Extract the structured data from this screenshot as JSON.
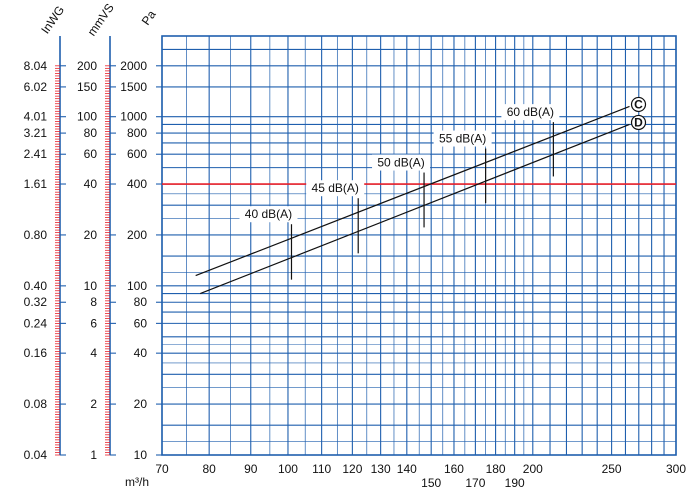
{
  "chart_data": {
    "type": "line",
    "x_scale": "log",
    "y_scale": "log",
    "xlim": [
      70,
      300
    ],
    "ylim": [
      10,
      3000
    ],
    "x_unit": "m³/h",
    "axis_units": {
      "pa": "Pa",
      "mmvs": "mmVS",
      "inwg": "InWG"
    },
    "x_ticks": [
      {
        "value": 70,
        "label": "70",
        "row": "top"
      },
      {
        "value": 80,
        "label": "80",
        "row": "top"
      },
      {
        "value": 90,
        "label": "90",
        "row": "top"
      },
      {
        "value": 100,
        "label": "100",
        "row": "top"
      },
      {
        "value": 110,
        "label": "110",
        "row": "top"
      },
      {
        "value": 120,
        "label": "120",
        "row": "top"
      },
      {
        "value": 130,
        "label": "130",
        "row": "top"
      },
      {
        "value": 140,
        "label": "140",
        "row": "top"
      },
      {
        "value": 150,
        "label": "150",
        "row": "bottom"
      },
      {
        "value": 160,
        "label": "160",
        "row": "top"
      },
      {
        "value": 170,
        "label": "170",
        "row": "bottom"
      },
      {
        "value": 180,
        "label": "180",
        "row": "top"
      },
      {
        "value": 190,
        "label": "190",
        "row": "bottom"
      },
      {
        "value": 200,
        "label": "200",
        "row": "top"
      },
      {
        "value": 250,
        "label": "250",
        "row": "top"
      },
      {
        "value": 300,
        "label": "300",
        "row": "top"
      }
    ],
    "pa_ticks": [
      "10",
      "20",
      "40",
      "60",
      "80",
      "100",
      "200",
      "400",
      "600",
      "800",
      "1000",
      "1500",
      "2000"
    ],
    "mmvs_ticks": [
      "1",
      "2",
      "4",
      "6",
      "8",
      "10",
      "20",
      "40",
      "60",
      "80",
      "100",
      "150",
      "200"
    ],
    "inwg_ticks": [
      "0.04",
      "0.08",
      "0.16",
      "0.24",
      "0.32",
      "0.40",
      "0.80",
      "1.61",
      "2.41",
      "3.21",
      "4.01",
      "6.02",
      "8.04"
    ],
    "highlight_pressure": 400,
    "series": [
      {
        "name": "C",
        "x": [
          77,
          263
        ],
        "y": [
          115,
          1150
        ]
      },
      {
        "name": "D",
        "x": [
          78,
          263
        ],
        "y": [
          90,
          900
        ]
      }
    ],
    "noise_marks": [
      {
        "label": "40 dB(A)",
        "x": 101
      },
      {
        "label": "45 dB(A)",
        "x": 122
      },
      {
        "label": "50 dB(A)",
        "x": 147
      },
      {
        "label": "55 dB(A)",
        "x": 175
      },
      {
        "label": "60 dB(A)",
        "x": 212
      }
    ]
  },
  "colors": {
    "grid": "#1f5fae",
    "highlight": "#e8202a",
    "curve": "#111111"
  }
}
